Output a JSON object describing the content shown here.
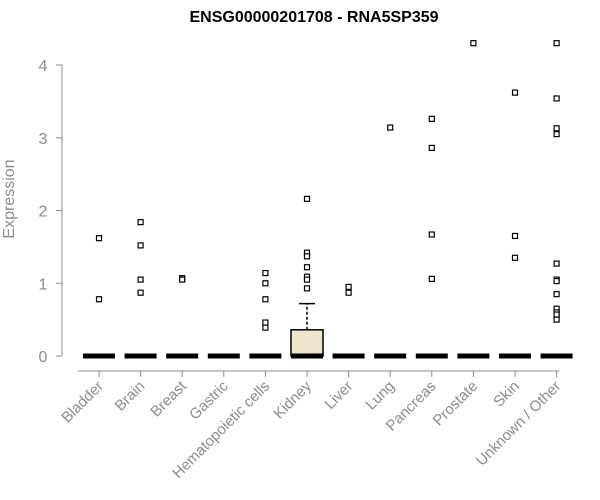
{
  "chart_data": {
    "type": "boxplot",
    "title": "ENSG00000201708 - RNA5SP359",
    "xlabel": "",
    "ylabel": "Expression",
    "ylim": [
      0,
      4.35
    ],
    "yticks": [
      0,
      1,
      2,
      3,
      4
    ],
    "categories": [
      "Bladder",
      "Brain",
      "Breast",
      "Gastric",
      "Hematopoietic cells",
      "Kidney",
      "Liver",
      "Lung",
      "Pancreas",
      "Prostate",
      "Skin",
      "Unknown / Other"
    ],
    "boxes": [
      {
        "category": "Bladder",
        "q1": 0,
        "median": 0,
        "q3": 0,
        "whisker_low": 0,
        "whisker_high": 0,
        "outliers": [
          1.62,
          0.78
        ]
      },
      {
        "category": "Brain",
        "q1": 0,
        "median": 0,
        "q3": 0,
        "whisker_low": 0,
        "whisker_high": 0,
        "outliers": [
          1.84,
          1.52,
          1.05,
          0.87
        ]
      },
      {
        "category": "Breast",
        "q1": 0,
        "median": 0,
        "q3": 0,
        "whisker_low": 0,
        "whisker_high": 0,
        "outliers": [
          1.07,
          1.05
        ]
      },
      {
        "category": "Gastric",
        "q1": 0,
        "median": 0,
        "q3": 0,
        "whisker_low": 0,
        "whisker_high": 0,
        "outliers": []
      },
      {
        "category": "Hematopoietic cells",
        "q1": 0,
        "median": 0,
        "q3": 0,
        "whisker_low": 0,
        "whisker_high": 0,
        "outliers": [
          1.14,
          1.0,
          0.78,
          0.46,
          0.39
        ]
      },
      {
        "category": "Kidney",
        "q1": 0,
        "median": 0,
        "q3": 0.36,
        "whisker_low": 0,
        "whisker_high": 0.72,
        "outliers": [
          2.16,
          1.42,
          1.37,
          1.22,
          1.09,
          1.05,
          0.93
        ]
      },
      {
        "category": "Liver",
        "q1": 0,
        "median": 0,
        "q3": 0,
        "whisker_low": 0,
        "whisker_high": 0,
        "outliers": [
          0.95,
          0.87
        ]
      },
      {
        "category": "Lung",
        "q1": 0,
        "median": 0,
        "q3": 0,
        "whisker_low": 0,
        "whisker_high": 0,
        "outliers": [
          3.14
        ]
      },
      {
        "category": "Pancreas",
        "q1": 0,
        "median": 0,
        "q3": 0,
        "whisker_low": 0,
        "whisker_high": 0,
        "outliers": [
          3.26,
          2.86,
          1.67,
          1.06
        ]
      },
      {
        "category": "Prostate",
        "q1": 0,
        "median": 0,
        "q3": 0,
        "whisker_low": 0,
        "whisker_high": 0,
        "outliers": [
          4.3
        ]
      },
      {
        "category": "Skin",
        "q1": 0,
        "median": 0,
        "q3": 0,
        "whisker_low": 0,
        "whisker_high": 0,
        "outliers": [
          3.62,
          1.65,
          1.35
        ]
      },
      {
        "category": "Unknown / Other",
        "q1": 0,
        "median": 0,
        "q3": 0,
        "whisker_low": 0,
        "whisker_high": 0,
        "outliers": [
          4.3,
          3.54,
          3.13,
          3.05,
          1.27,
          1.05,
          1.03,
          0.85,
          0.65,
          0.6,
          0.57,
          0.5
        ]
      }
    ],
    "box_fill": "#ede5cc",
    "point_color": "#000000",
    "axis_color": "#8c8c8c",
    "grid": false
  }
}
